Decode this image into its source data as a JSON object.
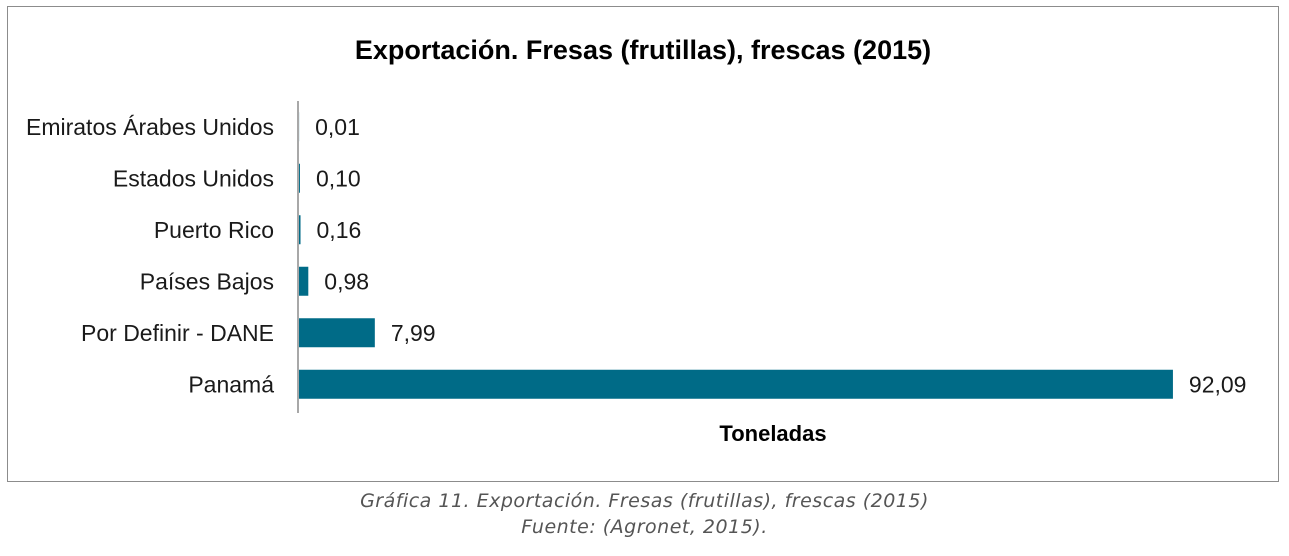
{
  "chart_data": {
    "type": "bar",
    "orientation": "horizontal",
    "title": "Exportación. Fresas (frutillas), frescas (2015)",
    "xlabel": "Toneladas",
    "ylabel": "",
    "categories": [
      "Emiratos Árabes Unidos",
      "Estados Unidos",
      "Puerto Rico",
      "Países Bajos",
      "Por Definir - DANE",
      "Panamá"
    ],
    "values": [
      0.01,
      0.1,
      0.16,
      0.98,
      7.99,
      92.09
    ],
    "value_labels": [
      "0,01",
      "0,10",
      "0,16",
      "0,98",
      "7,99",
      "92,09"
    ],
    "xlim": [
      0,
      100
    ],
    "grid": false,
    "legend": "none",
    "bar_color": "#006b87"
  },
  "caption": {
    "line1": "Gráfica 11. Exportación. Fresas (frutillas), frescas (2015)",
    "line2": "Fuente: (Agronet, 2015)."
  }
}
